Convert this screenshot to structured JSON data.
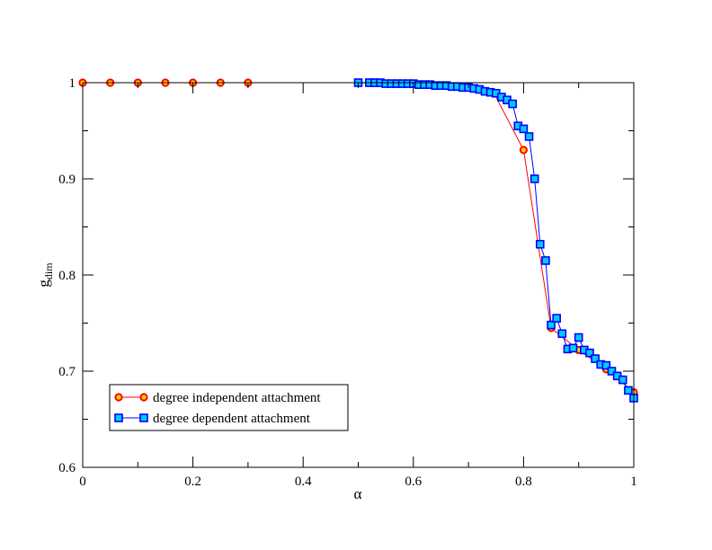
{
  "chart_data": {
    "type": "line",
    "xlabel": "α",
    "ylabel": "g",
    "ylabel_sub": "dim",
    "xlim": [
      0,
      1
    ],
    "ylim": [
      0.6,
      1.0
    ],
    "xticks": [
      0,
      0.2,
      0.4,
      0.6,
      0.8,
      1
    ],
    "xtick_labels": [
      "0",
      "0.2",
      "0.4",
      "0.6",
      "0.8",
      "1"
    ],
    "yticks": [
      0.6,
      0.7,
      0.8,
      0.9,
      1.0
    ],
    "ytick_labels": [
      "0.6",
      "0.7",
      "0.8",
      "0.9",
      "1"
    ],
    "legend_position": "bottom-left",
    "series": [
      {
        "name": "degree independent attachment",
        "line_color": "#ff0000",
        "marker": "circle",
        "marker_edge": "#ff0000",
        "marker_fill": "#ffd700",
        "x": [
          0,
          0.05,
          0.1,
          0.15,
          0.2,
          0.25,
          0.3,
          0.35,
          0.4,
          0.45,
          0.5,
          0.55,
          0.6,
          0.65,
          0.7,
          0.75,
          0.8,
          0.85,
          0.9,
          0.95,
          1.0
        ],
        "y": [
          1.0,
          1.0,
          1.0,
          1.0,
          1.0,
          1.0,
          1.0,
          1.0,
          1.0,
          1.0,
          1.0,
          0.999,
          0.998,
          0.997,
          0.995,
          0.985,
          0.93,
          0.745,
          0.722,
          0.702,
          0.678
        ],
        "marker_x": [
          0,
          0.05,
          0.1,
          0.15,
          0.2,
          0.25,
          0.3,
          0.8,
          0.85,
          0.9,
          0.95,
          1.0
        ],
        "marker_y": [
          1.0,
          1.0,
          1.0,
          1.0,
          1.0,
          1.0,
          1.0,
          0.93,
          0.745,
          0.722,
          0.702,
          0.678
        ]
      },
      {
        "name": "degree dependent attachment",
        "line_color": "#0000ff",
        "marker": "square",
        "marker_edge": "#0000ff",
        "marker_fill": "#00ccff",
        "x": [
          0.5,
          0.52,
          0.53,
          0.54,
          0.55,
          0.56,
          0.57,
          0.58,
          0.59,
          0.6,
          0.61,
          0.62,
          0.63,
          0.64,
          0.65,
          0.66,
          0.67,
          0.68,
          0.69,
          0.7,
          0.71,
          0.72,
          0.73,
          0.74,
          0.75,
          0.76,
          0.77,
          0.78,
          0.79,
          0.8,
          0.81,
          0.82,
          0.83,
          0.84,
          0.85,
          0.86,
          0.87,
          0.88,
          0.89,
          0.9,
          0.91,
          0.92,
          0.93,
          0.94,
          0.95,
          0.96,
          0.97,
          0.98,
          0.99,
          1.0
        ],
        "y": [
          1.0,
          1.0,
          1.0,
          1.0,
          0.999,
          0.999,
          0.999,
          0.999,
          0.999,
          0.999,
          0.998,
          0.998,
          0.998,
          0.997,
          0.997,
          0.997,
          0.996,
          0.996,
          0.995,
          0.995,
          0.994,
          0.993,
          0.991,
          0.99,
          0.989,
          0.985,
          0.982,
          0.978,
          0.955,
          0.952,
          0.944,
          0.9,
          0.832,
          0.815,
          0.748,
          0.755,
          0.739,
          0.723,
          0.724,
          0.735,
          0.722,
          0.719,
          0.713,
          0.707,
          0.706,
          0.7,
          0.695,
          0.691,
          0.68,
          0.672
        ]
      }
    ]
  }
}
